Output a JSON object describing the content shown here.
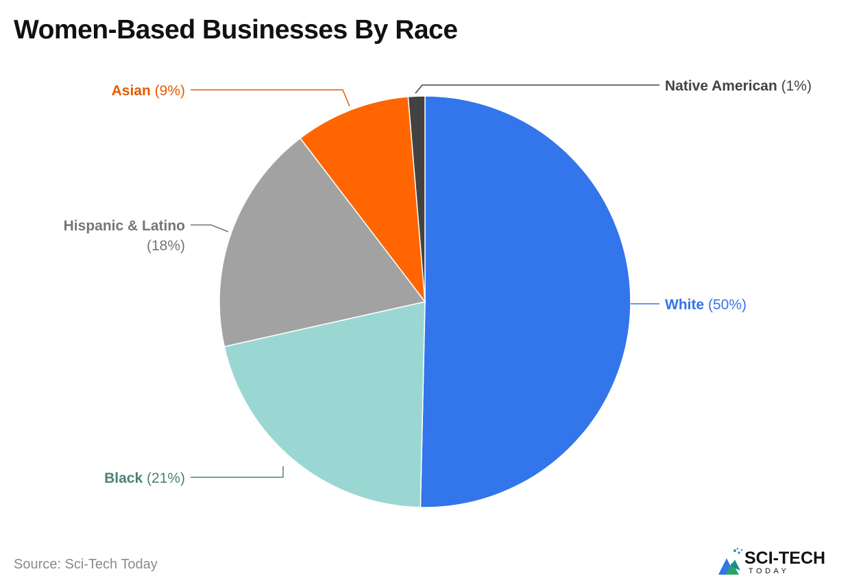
{
  "title": "Women-Based Businesses By Race",
  "source": "Source: Sci-Tech Today",
  "logo": {
    "text": "SCI-TECH",
    "sub": "TODAY",
    "icon": "sci-tech-logo-icon"
  },
  "chart_data": {
    "type": "pie",
    "title": "Women-Based Businesses By Race",
    "start": "12 o'clock, clockwise",
    "slices": [
      {
        "label": "White",
        "value": 50,
        "value_label": "(50%)",
        "color": "#3375ea",
        "label_color": "#3375ea"
      },
      {
        "label": "Black",
        "value": 21,
        "value_label": "(21%)",
        "color": "#9ad7d2",
        "label_color": "#4a8278"
      },
      {
        "label": "Hispanic & Latino",
        "value": 18,
        "value_label": "(18%)",
        "color": "#a2a2a2",
        "label_color": "#757575"
      },
      {
        "label": "Asian",
        "value": 9,
        "value_label": "(9%)",
        "color": "#ff6500",
        "label_color": "#e55a00"
      },
      {
        "label": "Native American",
        "value": 1.3,
        "value_label": "(1%)",
        "color": "#424242",
        "label_color": "#424242"
      }
    ]
  }
}
